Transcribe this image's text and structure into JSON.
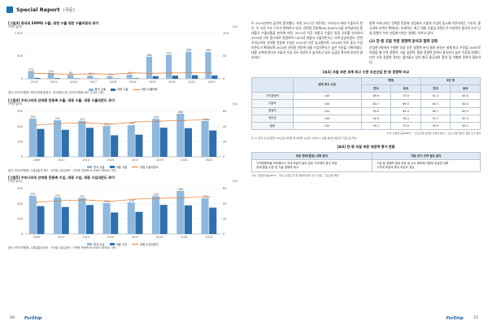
{
  "header": {
    "title": "Special Report",
    "subtitle": "(국문)"
  },
  "left": {
    "fig1": {
      "title": "[그림3] 중국의 EMMS 수출, 대한 수출 대한 수출비중의 추이",
      "unit_left": "(백만 달러)",
      "unit_right": "(%)",
      "source": "출처: 한국무역협회, 해외무역통계(중국 : 한국해운수출, 한국무역협회 DAT 성 8대 기준)",
      "legend": [
        "중국 수출",
        "대한 수출",
        "대한 수출비중"
      ]
    },
    "fig2": {
      "title": "[그림4] 우리나라의 선박용 전동축 수출, 대중 수출, 대중 수출의존도 추이",
      "unit_left": "(백만 달러)",
      "unit_right": "(%)",
      "source": "출처: 한국무역협회, 수출입통계 참조 · 국가별 수출입정보 · 선박용 전동축(HS 8483 DEKKA 기준)",
      "legend": [
        "한국 수출",
        "대중 수출",
        "대중 수출의존도"
      ]
    },
    "fig3": {
      "title": "[그림5] 우리나라의 선박용 전동축 수입, 대중 수입, 대중 수입의존도 추이",
      "unit_left": "(백만 달러)",
      "unit_right": "(%)",
      "source": "출처: 한국무역협회, 수출입통계 참조 · 국가별 수출입정보 · 선박용 전동축(HS 8483 DEKKA 기준)",
      "legend": [
        "한국 수입",
        "대중 수입",
        "대중 수입의존도"
      ]
    }
  },
  "right": {
    "para1": "두 2023년까지 급격히 증가했다. 또한 2017년 이후로는 우리나라 최대 수출국이 된다. 두 나라 수요 구조가 변화하고 있다. 선박용 전동축(HS 848310)을 교역상대국 중 대중국 수출비중을 분석해 보면, 2011년 이후 대중국 수출은 일정 규모를 유지하다 2019년 이후 증가세로 전환하여 2023년 대중국 수출의존도는 크게 상승하였다. 반면 우리나라의 선박용 전동축 수입은 2010년 이후 감소했으며, 2019년 이후 중국 수입의존도가 확대되며 2023년 선박용 전동축 대중 수입의존도는 높은 수준을 기록하였다. 대중 교역에 있어서 수출과 수입 모두 의존도가 높아지고 있어 공급망 관리에 유의가 필요하다.",
    "para2": "한편 우리나라는 선박용 전동축 산업에서 수출과 수입이 동시에 이루어지는 구조로, 중국과의 교역이 확대되는 추세이다. 최근 대중 수출입 의존도가 커지면서 중국의 조선 산업 동향이 우리 산업에 미치는 영향도 커지고 있다.",
    "section": "(2) 한·중 조달 부문 경쟁력 분석과 협력 강화",
    "para3": "산업연구원에서 수행한 조달 부문 경쟁력 분석 결과 한국은 세계 최고 수준을 100으로 하였을 때 가격 경쟁력, 기술 경쟁력, 품질 경쟁력 등에서 중국보다 높은 수준을 보였다. 다만 가격 경쟁력 격차는 줄어들고 있어 향후 중국과의 협력 및 차별화 전략이 필요하다.",
    "table1": {
      "title": "[표3] 조달 부문 세계 최고 수준 조선산업 한·중 경쟁력 비교",
      "group_headers": [
        "현재",
        "5년 후"
      ],
      "col_first": "세계 최고 수준",
      "sub_headers": [
        "한국",
        "중국",
        "한국",
        "중국"
      ],
      "rows": [
        {
          "label": "가격경쟁력",
          "base": "100",
          "vals": [
            "89.9",
            "73.9",
            "91.3",
            "85.5"
          ]
        },
        {
          "label": "기술력",
          "base": "100",
          "vals": [
            "83.7",
            "69.5",
            "83.7",
            "80.2"
          ]
        },
        {
          "label": "품질력",
          "base": "100",
          "vals": [
            "90.5",
            "84.9",
            "89.7",
            "89.3"
          ]
        },
        {
          "label": "생산성",
          "base": "100",
          "vals": [
            "92.0",
            "78.4",
            "91.7",
            "87.5"
          ]
        },
        {
          "label": "종합",
          "base": "100",
          "vals": [
            "90.1",
            "70.5",
            "90.9",
            "85.1"
          ]
        }
      ],
      "note": "출처: 산업연구원(KIET), 「조선산업 공급망 안정성 평가」 조선 산업 전문가 설문 조사 결과",
      "footnote": "주: 1) 한국 조선산업을 100으로 하였을 때 상대적 수준을 나타냄  2) 설문 응답자 평균값 기준으로 작성"
    },
    "table2": {
      "title": "[표4] 한·중 조달 부문 대응력 평가 현황",
      "headers": [
        "대응 협력(품질) 강화 분야",
        "대응 단기 전략 필요 분야"
      ],
      "left_text": "· 가격경쟁력을 보유했으나 국내 조달이 많지 않은 기자재의 중국 조달\n· 현재 품질 수준 및 기술 경쟁력 제고",
      "right_text": "· 기술 등 경쟁력 열위 부문 및 수요 확대에 대응한 공급망 강화\n· 기자재 조달의 중국 의존도 경감",
      "source": "출처: 산업연구원(KIET), 「주요 산업군 한·중 경쟁력 분석 및 시사점」 조선산업 부문"
    }
  },
  "footer": {
    "page_left": "10",
    "page_right": "11",
    "brand": "ForShip"
  },
  "chart_data": [
    {
      "type": "bar",
      "title": "[그림3] 중국의 EMMS 수출, 대한 수출 대한 수출비중의 추이",
      "categories": [
        "2014",
        "2015",
        "2016",
        "2017",
        "2018",
        "2019",
        "2020",
        "2021",
        "2022",
        "2023"
      ],
      "series": [
        {
          "name": "중국 수출",
          "values": [
            172,
            129,
            85,
            68,
            57,
            92,
            484,
            527,
            596,
            585
          ]
        },
        {
          "name": "대한 수출",
          "values": [
            20,
            15,
            10,
            8,
            6,
            12,
            60,
            70,
            80,
            75
          ]
        },
        {
          "name": "대한 수출비중",
          "axis": "right",
          "values": [
            12,
            11,
            10,
            11,
            10,
            13,
            12,
            13,
            13,
            13
          ]
        }
      ],
      "ylim_left": [
        0,
        1000
      ],
      "ylim_right": [
        0,
        100
      ],
      "y_ticks_left": [
        "1,000",
        "500",
        "0"
      ],
      "y_ticks_right": [
        "100",
        "50",
        "0"
      ],
      "data_labels": [
        "172",
        "129",
        "85",
        "68",
        "57",
        "92",
        "484",
        "527",
        "596",
        "585"
      ]
    },
    {
      "type": "bar",
      "title": "[그림4] 우리나라의 선박용 전동축 수출, 대중 수출, 대중 수출의존도 추이",
      "categories": [
        "2009",
        "2011",
        "2013",
        "2015",
        "2017",
        "2019",
        "2021",
        "2023"
      ],
      "series": [
        {
          "name": "한국 수출",
          "values": [
            252,
            241,
            237,
            204,
            208,
            250,
            284,
            236
          ]
        },
        {
          "name": "대중 수출",
          "values": [
            184,
            178,
            191,
            142,
            146,
            192,
            189,
            174
          ]
        },
        {
          "name": "대중 수출의존도",
          "axis": "right",
          "values": [
            42,
            44,
            45,
            43,
            46,
            47,
            48,
            49
          ]
        }
      ],
      "ylim_left": [
        0,
        300
      ],
      "ylim_right": [
        0,
        60
      ],
      "y_ticks_left": [
        "300",
        "200",
        "100",
        "0"
      ],
      "y_ticks_right": [
        "60",
        "40",
        "20",
        "0"
      ],
      "data_labels": [
        "252",
        "241",
        "237",
        "204",
        "208",
        "250",
        "284",
        "236"
      ]
    },
    {
      "type": "bar",
      "title": "[그림5] 우리나라의 선박용 전동축 수입, 대중 수입, 대중 수입의존도 추이",
      "categories": [
        "2009",
        "2011",
        "2013",
        "2015",
        "2017",
        "2019",
        "2021",
        "2023"
      ],
      "series": [
        {
          "name": "한국 수입",
          "values": [
            252,
            241,
            237,
            204,
            208,
            250,
            284,
            236
          ]
        },
        {
          "name": "대중 수입",
          "values": [
            184,
            178,
            191,
            142,
            146,
            192,
            189,
            174
          ]
        },
        {
          "name": "대중 수입의존도",
          "axis": "right",
          "values": [
            42,
            44,
            45,
            43,
            46,
            47,
            48,
            49
          ]
        }
      ],
      "ylim_left": [
        0,
        300
      ],
      "ylim_right": [
        0,
        60
      ],
      "y_ticks_left": [
        "300",
        "200",
        "100",
        "0"
      ],
      "y_ticks_right": [
        "60",
        "40",
        "20",
        "0"
      ],
      "data_labels": [
        "252",
        "241",
        "237",
        "204",
        "208",
        "250",
        "284",
        "236"
      ]
    }
  ],
  "colors": {
    "bar_main": "#8eb8dc",
    "bar_sub": "#2f6fad",
    "line": "#e07a2e",
    "brand": "#1b5fa8"
  }
}
